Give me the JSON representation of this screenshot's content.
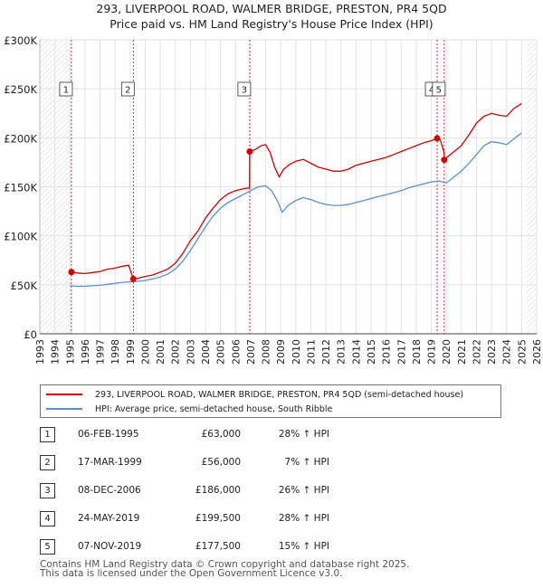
{
  "header": {
    "title_line1": "293, LIVERPOOL ROAD, WALMER BRIDGE, PRESTON, PR4 5QD",
    "title_line2": "Price paid vs. HM Land Registry's House Price Index (HPI)"
  },
  "chart_data": {
    "type": "line",
    "title": "293, LIVERPOOL ROAD, WALMER BRIDGE, PRESTON, PR4 5QD",
    "subtitle": "Price paid vs. HM Land Registry's House Price Index (HPI)",
    "xlim": [
      1993,
      2026
    ],
    "ylim": [
      0,
      300000
    ],
    "y_ticks": [
      0,
      50000,
      100000,
      150000,
      200000,
      250000,
      300000
    ],
    "y_tick_labels": [
      "£0",
      "£50K",
      "£100K",
      "£150K",
      "£200K",
      "£250K",
      "£300K"
    ],
    "x_ticks": [
      1993,
      1994,
      1995,
      1996,
      1997,
      1998,
      1999,
      2000,
      2001,
      2002,
      2003,
      2004,
      2005,
      2006,
      2007,
      2008,
      2009,
      2010,
      2011,
      2012,
      2013,
      2014,
      2015,
      2016,
      2017,
      2018,
      2019,
      2020,
      2021,
      2022,
      2023,
      2024,
      2025,
      2026
    ],
    "grid": true,
    "hatch_regions": [
      [
        1993,
        1995.1
      ],
      [
        2025.3,
        2026
      ]
    ],
    "series": [
      {
        "name": "293, LIVERPOOL ROAD, WALMER BRIDGE, PRESTON, PR4 5QD (semi-detached house)",
        "color": "#cc0000",
        "points": [
          [
            1995.1,
            63000
          ],
          [
            1995.5,
            62000
          ],
          [
            1996,
            61500
          ],
          [
            1996.5,
            62500
          ],
          [
            1997,
            63500
          ],
          [
            1997.5,
            66000
          ],
          [
            1998,
            67000
          ],
          [
            1998.5,
            69000
          ],
          [
            1998.9,
            70000
          ],
          [
            1999.21,
            56000
          ],
          [
            1999.6,
            57000
          ],
          [
            2000,
            58500
          ],
          [
            2000.5,
            60000
          ],
          [
            2001,
            63000
          ],
          [
            2001.5,
            66000
          ],
          [
            2002,
            72000
          ],
          [
            2002.5,
            82000
          ],
          [
            2003,
            95000
          ],
          [
            2003.5,
            105000
          ],
          [
            2004,
            118000
          ],
          [
            2004.5,
            128000
          ],
          [
            2005,
            137000
          ],
          [
            2005.5,
            143000
          ],
          [
            2006,
            146000
          ],
          [
            2006.5,
            148000
          ],
          [
            2006.93,
            149000
          ],
          [
            2006.94,
            186000
          ],
          [
            2007.3,
            188000
          ],
          [
            2007.7,
            192000
          ],
          [
            2008,
            193000
          ],
          [
            2008.3,
            185000
          ],
          [
            2008.6,
            170000
          ],
          [
            2008.9,
            160000
          ],
          [
            2009.2,
            168000
          ],
          [
            2009.6,
            173000
          ],
          [
            2010,
            176000
          ],
          [
            2010.5,
            178000
          ],
          [
            2011,
            174000
          ],
          [
            2011.5,
            170000
          ],
          [
            2012,
            168000
          ],
          [
            2012.5,
            166000
          ],
          [
            2013,
            166000
          ],
          [
            2013.5,
            168000
          ],
          [
            2014,
            172000
          ],
          [
            2014.5,
            174000
          ],
          [
            2015,
            176000
          ],
          [
            2015.5,
            178000
          ],
          [
            2016,
            180000
          ],
          [
            2016.5,
            183000
          ],
          [
            2017,
            186000
          ],
          [
            2017.5,
            189000
          ],
          [
            2018,
            192000
          ],
          [
            2018.5,
            195000
          ],
          [
            2019,
            197000
          ],
          [
            2019.39,
            199500
          ],
          [
            2019.6,
            198000
          ],
          [
            2019.85,
            185000
          ],
          [
            2019.86,
            177500
          ],
          [
            2020.2,
            182000
          ],
          [
            2020.6,
            187000
          ],
          [
            2021,
            192000
          ],
          [
            2021.5,
            203000
          ],
          [
            2022,
            215000
          ],
          [
            2022.5,
            222000
          ],
          [
            2023,
            225000
          ],
          [
            2023.5,
            223000
          ],
          [
            2024,
            222000
          ],
          [
            2024.5,
            230000
          ],
          [
            2025,
            235000
          ]
        ]
      },
      {
        "name": "HPI: Average price, semi-detached house, South Ribble",
        "color": "#5b8fcf",
        "points": [
          [
            1995,
            49000
          ],
          [
            1995.5,
            48500
          ],
          [
            1996,
            48500
          ],
          [
            1996.5,
            49000
          ],
          [
            1997,
            49500
          ],
          [
            1997.5,
            50500
          ],
          [
            1998,
            51500
          ],
          [
            1998.5,
            52500
          ],
          [
            1999,
            53000
          ],
          [
            1999.5,
            53500
          ],
          [
            2000,
            54500
          ],
          [
            2000.5,
            56000
          ],
          [
            2001,
            58000
          ],
          [
            2001.5,
            61000
          ],
          [
            2002,
            66000
          ],
          [
            2002.5,
            74000
          ],
          [
            2003,
            85000
          ],
          [
            2003.5,
            97000
          ],
          [
            2004,
            109000
          ],
          [
            2004.5,
            120000
          ],
          [
            2005,
            128000
          ],
          [
            2005.5,
            134000
          ],
          [
            2006,
            138000
          ],
          [
            2006.5,
            142000
          ],
          [
            2007,
            146000
          ],
          [
            2007.5,
            150000
          ],
          [
            2008,
            151000
          ],
          [
            2008.4,
            146000
          ],
          [
            2008.8,
            135000
          ],
          [
            2009.1,
            124000
          ],
          [
            2009.5,
            131000
          ],
          [
            2010,
            136000
          ],
          [
            2010.5,
            139000
          ],
          [
            2011,
            137000
          ],
          [
            2011.5,
            134000
          ],
          [
            2012,
            132000
          ],
          [
            2012.5,
            131000
          ],
          [
            2013,
            131000
          ],
          [
            2013.5,
            132000
          ],
          [
            2014,
            134000
          ],
          [
            2014.5,
            136000
          ],
          [
            2015,
            138000
          ],
          [
            2015.5,
            140000
          ],
          [
            2016,
            142000
          ],
          [
            2016.5,
            144000
          ],
          [
            2017,
            146000
          ],
          [
            2017.5,
            149000
          ],
          [
            2018,
            151000
          ],
          [
            2018.5,
            153000
          ],
          [
            2019,
            155000
          ],
          [
            2019.5,
            156000
          ],
          [
            2020,
            154000
          ],
          [
            2020.5,
            160000
          ],
          [
            2021,
            166000
          ],
          [
            2021.5,
            174000
          ],
          [
            2022,
            183000
          ],
          [
            2022.5,
            192000
          ],
          [
            2023,
            196000
          ],
          [
            2023.5,
            195000
          ],
          [
            2024,
            193000
          ],
          [
            2024.5,
            199000
          ],
          [
            2025,
            205000
          ]
        ]
      }
    ],
    "sales": [
      {
        "label": "1",
        "x": 1995.1,
        "y": 63000
      },
      {
        "label": "2",
        "x": 1999.21,
        "y": 56000
      },
      {
        "label": "3",
        "x": 2006.94,
        "y": 186000
      },
      {
        "label": "4",
        "x": 2019.39,
        "y": 199500
      },
      {
        "label": "5",
        "x": 2019.86,
        "y": 177500
      }
    ]
  },
  "legend": {
    "items": [
      {
        "label": "293, LIVERPOOL ROAD, WALMER BRIDGE, PRESTON, PR4 5QD (semi-detached house)",
        "color": "#cc0000"
      },
      {
        "label": "HPI: Average price, semi-detached house, South Ribble",
        "color": "#5b8fcf"
      }
    ]
  },
  "transactions": [
    {
      "num": "1",
      "date": "06-FEB-1995",
      "price": "£63,000",
      "hpi": "28% ↑ HPI"
    },
    {
      "num": "2",
      "date": "17-MAR-1999",
      "price": "£56,000",
      "hpi": "7% ↑ HPI"
    },
    {
      "num": "3",
      "date": "08-DEC-2006",
      "price": "£186,000",
      "hpi": "26% ↑ HPI"
    },
    {
      "num": "4",
      "date": "24-MAY-2019",
      "price": "£199,500",
      "hpi": "28% ↑ HPI"
    },
    {
      "num": "5",
      "date": "07-NOV-2019",
      "price": "£177,500",
      "hpi": "15% ↑ HPI"
    }
  ],
  "footer": {
    "line1": "Contains HM Land Registry data © Crown copyright and database right 2025.",
    "line2": "This data is licensed under the Open Government Licence v3.0."
  }
}
